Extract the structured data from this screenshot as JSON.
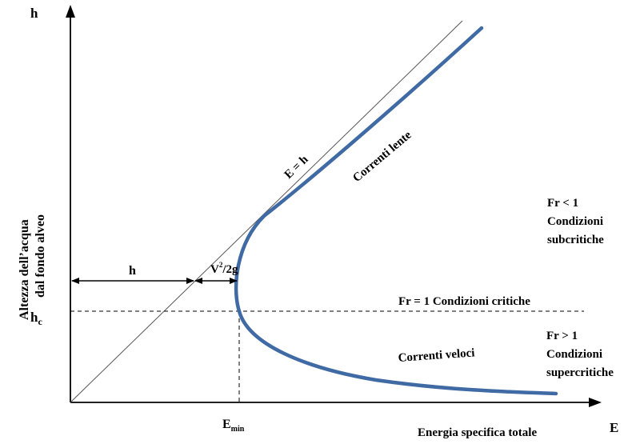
{
  "labels": {
    "y_axis_symbol": "h",
    "x_axis_symbol": "E",
    "y_axis_title_line1": "Altezza dell’acqua",
    "y_axis_title_line2": "dal fondo alveo",
    "x_axis_title": "Energia specifica totale",
    "hc_main": "h",
    "hc_sub": "c",
    "emin_main": "E",
    "emin_sub": "min",
    "line_label": "E = h",
    "h_dim": "h",
    "v2_main": "V",
    "v2_sup": "2",
    "v2_rest": "/2g",
    "branch_upper": "Correnti lente",
    "branch_lower": "Correnti veloci",
    "critical": "Fr = 1 Condizioni critiche",
    "sub_fr": "Fr < 1",
    "sub_l2": "Condizioni",
    "sub_l3": "subcritiche",
    "super_fr": "Fr > 1",
    "super_l2": "Condizioni",
    "super_l3": "supercritiche"
  },
  "colors": {
    "curve": "#3f6aa4",
    "axes": "#000000",
    "reference_line": "#555555"
  }
}
